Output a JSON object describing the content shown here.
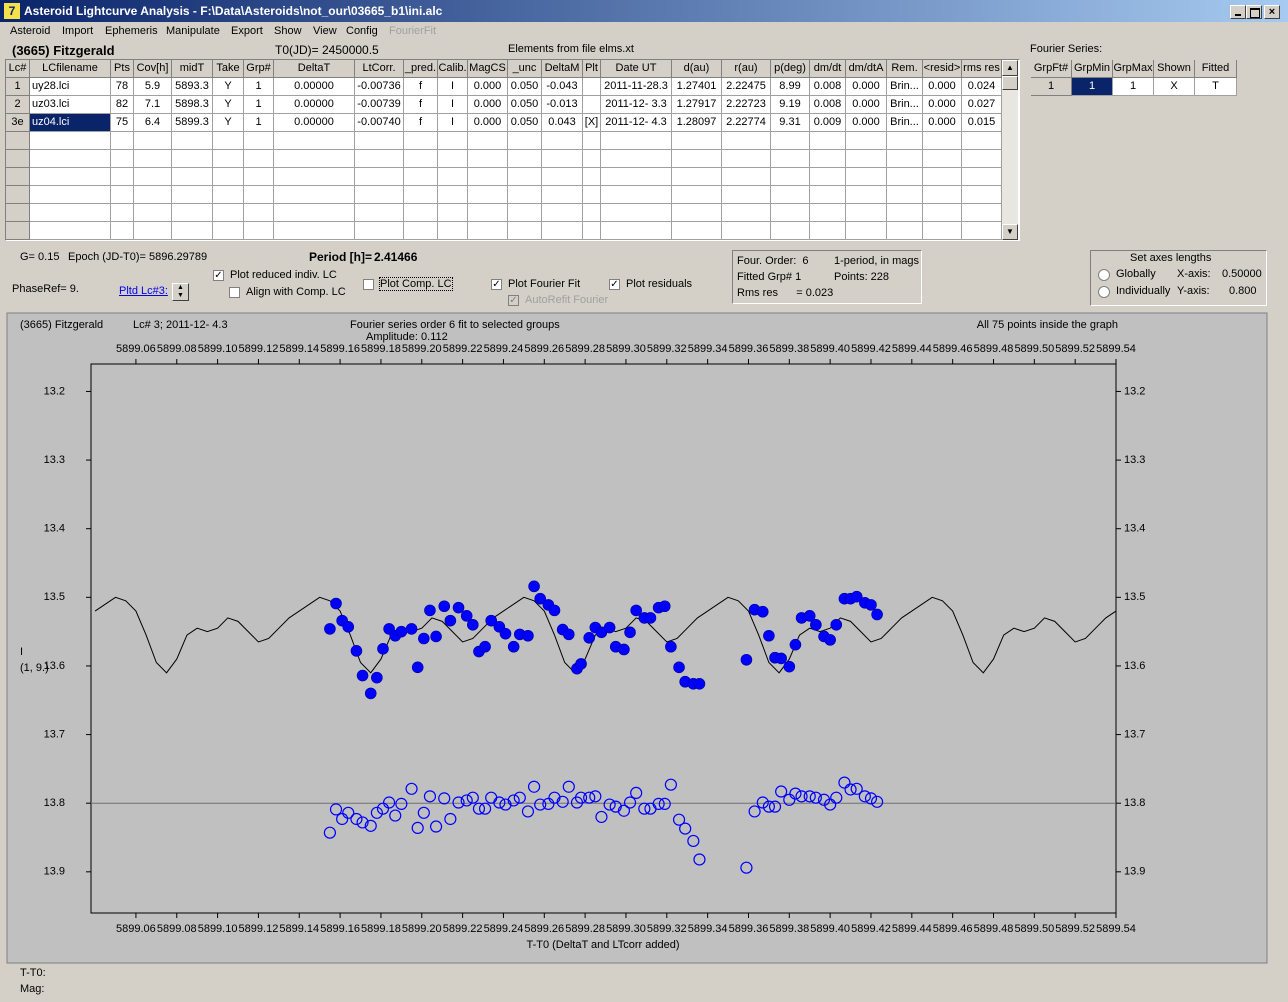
{
  "window": {
    "title": "Asteroid Lightcurve Analysis - F:\\Data\\Asteroids\\not_our\\03665_b1\\ini.alc"
  },
  "menu": [
    "Asteroid",
    "Import",
    "Ephemeris",
    "Manipulate",
    "Export",
    "Show",
    "View",
    "Config",
    "FourierFit"
  ],
  "header": {
    "object": "(3665) Fitzgerald",
    "t0": "T0(JD)= 2450000.5",
    "elements": "Elements from file elms.xt",
    "fourier_label": "Fourier Series:"
  },
  "lc_table": {
    "columns": [
      "Lc#",
      "LCfilename",
      "Pts",
      "Cov[h]",
      "midT",
      "Take",
      "Grp#",
      "DeltaT",
      "LtCorr.",
      "_pred.",
      "Calib.",
      "MagCS",
      "_unc",
      "DeltaM",
      "Plt",
      "Date UT",
      "d(au)",
      "r(au)",
      "p(deg)",
      "dm/dt",
      "dm/dtA",
      "Rem.",
      "<resid>",
      "rms res"
    ],
    "rows": [
      [
        "1",
        "uy28.lci",
        "78",
        "5.9",
        "5893.3",
        "Y",
        "1",
        "0.00000",
        "-0.00736",
        "f",
        "I",
        "0.000",
        "0.050",
        "-0.043",
        null,
        "2011-11-28.3",
        "1.27401",
        "2.22475",
        "8.99",
        "0.008",
        "0.000",
        "Brin...",
        "0.000",
        "0.024"
      ],
      [
        "2",
        "uz03.lci",
        "82",
        "7.1",
        "5898.3",
        "Y",
        "1",
        "0.00000",
        "-0.00739",
        "f",
        "I",
        "0.000",
        "0.050",
        "-0.013",
        null,
        "2011-12- 3.3",
        "1.27917",
        "2.22723",
        "9.19",
        "0.008",
        "0.000",
        "Brin...",
        "0.000",
        "0.027"
      ],
      [
        "3e",
        "uz04.lci",
        "75",
        "6.4",
        "5899.3",
        "Y",
        "1",
        "0.00000",
        "-0.00740",
        "f",
        "I",
        "0.000",
        "0.050",
        "0.043",
        "[X]",
        "2011-12- 4.3",
        "1.28097",
        "2.22774",
        "9.31",
        "0.009",
        "0.000",
        "Brin...",
        "0.000",
        "0.015"
      ]
    ]
  },
  "fourier_table": {
    "columns": [
      "GrpFt#",
      "GrpMin",
      "GrpMax",
      "Shown",
      "Fitted"
    ],
    "rows": [
      [
        "1",
        "1",
        "1",
        "X",
        "T"
      ]
    ]
  },
  "params": {
    "g": "G= 0.15",
    "epoch": "Epoch (JD-T0)= 5896.29789",
    "period_label": "Period [h]=",
    "period": "2.41466",
    "phase_ref": "PhaseRef= 9.",
    "pltd_lc": "Pltd Lc#3:"
  },
  "checkboxes": [
    {
      "label": "Plot reduced indiv. LC",
      "checked": true
    },
    {
      "label": "Align with Comp. LC",
      "checked": false
    },
    {
      "label": "Plot Comp. LC",
      "checked": false
    },
    {
      "label": "Plot Fourier Fit",
      "checked": true
    },
    {
      "label": "Plot residuals",
      "checked": true
    },
    {
      "label": "AutoRefit Fourier",
      "checked": true
    }
  ],
  "info_box": {
    "order": "Four. Order:  6",
    "period_note": "1-period, in mags",
    "fitted": "Fitted Grp# 1",
    "points": "Points: 228",
    "rms": "Rms res      = 0.023"
  },
  "axes_panel": {
    "title": "Set axes lengths",
    "globally": "Globally",
    "individually": "Individually",
    "x_label": "X-axis:",
    "x_value": "0.50000",
    "y_label": "Y-axis:",
    "y_value": "0.800"
  },
  "status": [
    "T-T0:",
    "Mag:"
  ],
  "chart_data": {
    "type": "scatter",
    "object": "(3665) Fitzgerald",
    "lc_info": "Lc# 3; 2011-12- 4.3",
    "title": "Fourier series order 6 fit to selected groups",
    "amplitude": "Amplitude: 0.112",
    "points_note": "All 75 points inside the graph",
    "ylabel": [
      "I",
      "(1, 9.)"
    ],
    "xlabel": "T-T0 (DeltaT and LTcorr added)",
    "y_inverted": true,
    "xlim": [
      5899.038,
      5899.54
    ],
    "ylim": [
      13.16,
      13.96
    ],
    "xticks": [
      5899.06,
      5899.08,
      {
        "value": 5899.1,
        "label": "5899.10"
      },
      5899.12,
      5899.14,
      5899.16,
      5899.18,
      {
        "value": 5899.2,
        "label": "5899.20"
      },
      5899.22,
      5899.24,
      5899.26,
      5899.28,
      {
        "value": 5899.3,
        "label": "5899.30"
      },
      5899.32,
      5899.34,
      5899.36,
      5899.38,
      {
        "value": 5899.4,
        "label": "5899.40"
      },
      5899.42,
      5899.44,
      5899.46,
      5899.48,
      {
        "value": 5899.5,
        "label": "5899.50"
      },
      5899.52,
      5899.54
    ],
    "yticks": [
      13.2,
      13.3,
      13.4,
      13.5,
      13.6,
      13.7,
      13.8,
      13.9
    ],
    "residual_zero": 13.8,
    "x": [
      5899.155,
      5899.158,
      5899.161,
      5899.164,
      5899.168,
      5899.171,
      5899.175,
      5899.178,
      5899.181,
      5899.184,
      5899.187,
      5899.19,
      5899.195,
      5899.198,
      5899.201,
      5899.204,
      5899.207,
      5899.211,
      5899.214,
      5899.218,
      5899.222,
      5899.225,
      5899.228,
      5899.231,
      5899.234,
      5899.238,
      5899.241,
      5899.245,
      5899.248,
      5899.252,
      5899.255,
      5899.258,
      5899.262,
      5899.265,
      5899.269,
      5899.272,
      5899.276,
      5899.278,
      5899.282,
      5899.285,
      5899.288,
      5899.292,
      5899.295,
      5899.299,
      5899.302,
      5899.305,
      5899.309,
      5899.312,
      5899.316,
      5899.319,
      5899.322,
      5899.326,
      5899.329,
      5899.333,
      5899.336,
      5899.359,
      5899.363,
      5899.367,
      5899.37,
      5899.373,
      5899.376,
      5899.38,
      5899.383,
      5899.386,
      5899.39,
      5899.393,
      5899.397,
      5899.4,
      5899.403,
      5899.407,
      5899.41,
      5899.413,
      5899.417,
      5899.42,
      5899.423
    ],
    "series": [
      {
        "marker": "filled",
        "color": "#0000ff",
        "values": [
          13.546,
          13.509,
          13.534,
          13.543,
          13.578,
          13.614,
          13.64,
          13.617,
          13.575,
          13.546,
          13.556,
          13.55,
          13.546,
          13.602,
          13.56,
          13.519,
          13.557,
          13.513,
          13.534,
          13.515,
          13.527,
          13.54,
          13.579,
          13.572,
          13.534,
          13.543,
          13.553,
          13.572,
          13.554,
          13.556,
          13.484,
          13.502,
          13.511,
          13.519,
          13.547,
          13.554,
          13.604,
          13.597,
          13.559,
          13.544,
          13.551,
          13.544,
          13.572,
          13.576,
          13.551,
          13.519,
          13.53,
          13.53,
          13.515,
          13.513,
          13.572,
          13.602,
          13.623,
          13.626,
          13.626,
          13.591,
          13.518,
          13.521,
          13.556,
          13.588,
          13.589,
          13.601,
          13.569,
          13.53,
          13.527,
          13.54,
          13.557,
          13.562,
          13.54,
          13.502,
          13.502,
          13.499,
          13.508,
          13.511,
          13.525
        ]
      },
      {
        "marker": "open",
        "color": "#0000ff",
        "values": [
          13.843,
          13.809,
          13.823,
          13.814,
          13.823,
          13.828,
          13.833,
          13.814,
          13.808,
          13.799,
          13.818,
          13.801,
          13.779,
          13.836,
          13.814,
          13.79,
          13.834,
          13.793,
          13.823,
          13.799,
          13.796,
          13.792,
          13.808,
          13.808,
          13.792,
          13.799,
          13.802,
          13.796,
          13.792,
          13.812,
          13.776,
          13.802,
          13.801,
          13.792,
          13.798,
          13.776,
          13.799,
          13.792,
          13.792,
          13.79,
          13.82,
          13.802,
          13.805,
          13.811,
          13.799,
          13.785,
          13.808,
          13.808,
          13.801,
          13.801,
          13.773,
          13.824,
          13.837,
          13.855,
          13.882,
          13.894,
          13.812,
          13.799,
          13.805,
          13.805,
          13.783,
          13.795,
          13.786,
          13.79,
          13.79,
          13.792,
          13.795,
          13.802,
          13.792,
          13.77,
          13.78,
          13.779,
          13.79,
          13.793,
          13.798
        ]
      }
    ],
    "fit": {
      "color": "#000000",
      "x": [
        5899.04,
        5899.045,
        5899.05,
        5899.055,
        5899.06,
        5899.065,
        5899.07,
        5899.075,
        5899.08,
        5899.085,
        5899.09,
        5899.095,
        5899.1,
        5899.105,
        5899.11,
        5899.115,
        5899.12,
        5899.125,
        5899.13,
        5899.135,
        5899.14,
        5899.145,
        5899.15,
        5899.155,
        5899.16,
        5899.165,
        5899.17,
        5899.175,
        5899.18,
        5899.185,
        5899.19,
        5899.195,
        5899.2,
        5899.205,
        5899.21,
        5899.215,
        5899.22,
        5899.225,
        5899.23,
        5899.235,
        5899.24,
        5899.245,
        5899.25,
        5899.255,
        5899.26,
        5899.265,
        5899.27,
        5899.275,
        5899.28,
        5899.285,
        5899.29,
        5899.295,
        5899.3,
        5899.305,
        5899.31,
        5899.315,
        5899.32,
        5899.325,
        5899.33,
        5899.335,
        5899.34,
        5899.345,
        5899.35,
        5899.355,
        5899.36,
        5899.365,
        5899.37,
        5899.375,
        5899.38,
        5899.385,
        5899.39,
        5899.395,
        5899.4,
        5899.405,
        5899.41,
        5899.415,
        5899.42,
        5899.425,
        5899.43,
        5899.435,
        5899.44,
        5899.445,
        5899.45,
        5899.455,
        5899.46,
        5899.465,
        5899.47,
        5899.475,
        5899.48,
        5899.485,
        5899.49,
        5899.495,
        5899.5,
        5899.505,
        5899.51,
        5899.515,
        5899.52,
        5899.525,
        5899.53,
        5899.535,
        5899.54
      ],
      "values": [
        13.52,
        13.51,
        13.5,
        13.505,
        13.52,
        13.555,
        13.595,
        13.61,
        13.59,
        13.555,
        13.545,
        13.55,
        13.545,
        13.53,
        13.535,
        13.55,
        13.565,
        13.56,
        13.545,
        13.53,
        13.52,
        13.51,
        13.5,
        13.505,
        13.52,
        13.555,
        13.595,
        13.61,
        13.59,
        13.555,
        13.545,
        13.55,
        13.545,
        13.53,
        13.535,
        13.55,
        13.565,
        13.56,
        13.545,
        13.53,
        13.52,
        13.51,
        13.5,
        13.505,
        13.52,
        13.555,
        13.595,
        13.61,
        13.59,
        13.555,
        13.545,
        13.55,
        13.545,
        13.53,
        13.535,
        13.55,
        13.565,
        13.56,
        13.545,
        13.53,
        13.52,
        13.51,
        13.5,
        13.505,
        13.52,
        13.555,
        13.595,
        13.61,
        13.59,
        13.555,
        13.545,
        13.55,
        13.545,
        13.53,
        13.535,
        13.55,
        13.565,
        13.56,
        13.545,
        13.53,
        13.52,
        13.51,
        13.5,
        13.505,
        13.52,
        13.555,
        13.595,
        13.61,
        13.59,
        13.555,
        13.545,
        13.55,
        13.545,
        13.53,
        13.535,
        13.55,
        13.565,
        13.56,
        13.545,
        13.53,
        13.52
      ]
    }
  }
}
